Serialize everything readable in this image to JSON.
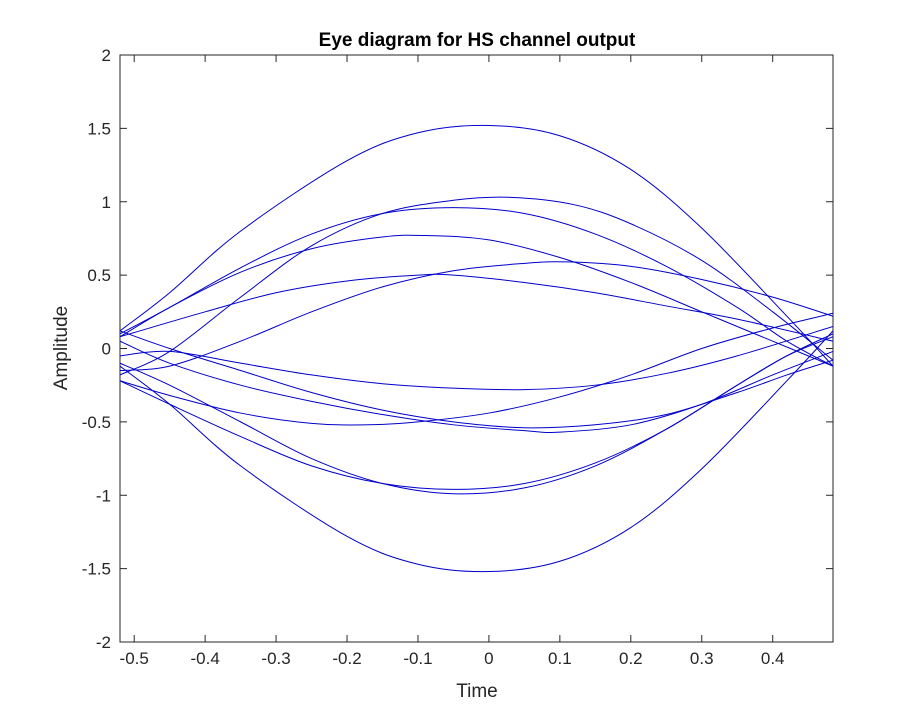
{
  "chart_data": {
    "type": "line",
    "title": "Eye diagram for HS channel output",
    "xlabel": "Time",
    "ylabel": "Amplitude",
    "xlim": [
      -0.52,
      0.485
    ],
    "ylim": [
      -2,
      2
    ],
    "xticks": [
      -0.5,
      -0.4,
      -0.3,
      -0.2,
      -0.1,
      0,
      0.1,
      0.2,
      0.3,
      0.4
    ],
    "xtick_labels": [
      "-0.5",
      "-0.4",
      "-0.3",
      "-0.2",
      "-0.1",
      "0",
      "0.1",
      "0.2",
      "0.3",
      "0.4"
    ],
    "yticks": [
      -2,
      -1.5,
      -1,
      -0.5,
      0,
      0.5,
      1,
      1.5,
      2
    ],
    "ytick_labels": [
      "-2",
      "-1.5",
      "-1",
      "-0.5",
      "0",
      "0.5",
      "1",
      "1.5",
      "2"
    ],
    "grid": false,
    "line_color": "#0000cc",
    "series": [
      {
        "x": [
          -0.52,
          -0.45,
          -0.35,
          -0.2,
          -0.1,
          0,
          0.1,
          0.2,
          0.3,
          0.42,
          0.485
        ],
        "y": [
          0.12,
          0.38,
          0.8,
          1.28,
          1.47,
          1.52,
          1.45,
          1.22,
          0.82,
          0.22,
          -0.12
        ]
      },
      {
        "x": [
          -0.52,
          -0.45,
          -0.35,
          -0.2,
          -0.1,
          0,
          0.1,
          0.2,
          0.3,
          0.42,
          0.485
        ],
        "y": [
          -0.12,
          -0.38,
          -0.8,
          -1.28,
          -1.47,
          -1.52,
          -1.45,
          -1.22,
          -0.82,
          -0.22,
          0.12
        ]
      },
      {
        "x": [
          -0.52,
          -0.45,
          -0.35,
          -0.25,
          -0.15,
          -0.05,
          0.03,
          0.12,
          0.2,
          0.3,
          0.4,
          0.485
        ],
        "y": [
          -0.18,
          -0.02,
          0.35,
          0.7,
          0.92,
          1.01,
          1.03,
          0.98,
          0.85,
          0.6,
          0.25,
          -0.08
        ]
      },
      {
        "x": [
          -0.52,
          -0.45,
          -0.35,
          -0.25,
          -0.15,
          -0.05,
          0.05,
          0.15,
          0.25,
          0.35,
          0.42,
          0.485
        ],
        "y": [
          0.1,
          0.28,
          0.55,
          0.78,
          0.92,
          0.96,
          0.92,
          0.78,
          0.56,
          0.28,
          0.05,
          -0.12
        ]
      },
      {
        "x": [
          -0.52,
          -0.45,
          -0.35,
          -0.25,
          -0.15,
          -0.09,
          0,
          0.1,
          0.2,
          0.3,
          0.4,
          0.485
        ],
        "y": [
          0.08,
          0.28,
          0.52,
          0.68,
          0.76,
          0.77,
          0.74,
          0.62,
          0.45,
          0.25,
          0.05,
          -0.12
        ]
      },
      {
        "x": [
          -0.52,
          -0.4,
          -0.3,
          -0.2,
          -0.1,
          -0.05,
          0.05,
          0.15,
          0.25,
          0.35,
          0.485
        ],
        "y": [
          0.08,
          0.25,
          0.38,
          0.46,
          0.5,
          0.5,
          0.45,
          0.38,
          0.29,
          0.2,
          0.05
        ]
      },
      {
        "x": [
          -0.52,
          -0.45,
          -0.35,
          -0.25,
          -0.15,
          -0.05,
          0.05,
          0.11,
          0.2,
          0.3,
          0.4,
          0.485
        ],
        "y": [
          -0.15,
          -0.12,
          0.05,
          0.25,
          0.42,
          0.53,
          0.58,
          0.59,
          0.56,
          0.47,
          0.35,
          0.22
        ]
      },
      {
        "x": [
          -0.52,
          -0.45,
          -0.35,
          -0.25,
          -0.15,
          -0.05,
          0.05,
          0.15,
          0.25,
          0.35,
          0.485
        ],
        "y": [
          -0.05,
          -0.02,
          -0.1,
          -0.18,
          -0.24,
          -0.27,
          -0.28,
          -0.25,
          -0.17,
          -0.05,
          0.15
        ]
      },
      {
        "x": [
          -0.52,
          -0.45,
          -0.35,
          -0.25,
          -0.17,
          -0.1,
          0,
          0.1,
          0.2,
          0.3,
          0.4,
          0.485
        ],
        "y": [
          -0.22,
          -0.32,
          -0.44,
          -0.51,
          -0.52,
          -0.5,
          -0.44,
          -0.33,
          -0.18,
          0.0,
          0.14,
          0.24
        ]
      },
      {
        "x": [
          -0.52,
          -0.45,
          -0.35,
          -0.25,
          -0.15,
          -0.05,
          0.05,
          0.1,
          0.2,
          0.3,
          0.4,
          0.485
        ],
        "y": [
          0.05,
          -0.1,
          -0.25,
          -0.36,
          -0.45,
          -0.52,
          -0.56,
          -0.57,
          -0.52,
          -0.38,
          -0.18,
          -0.02
        ]
      },
      {
        "x": [
          -0.52,
          -0.45,
          -0.35,
          -0.25,
          -0.15,
          -0.05,
          0.05,
          0.15,
          0.25,
          0.35,
          0.42,
          0.485
        ],
        "y": [
          0.12,
          0.0,
          -0.15,
          -0.3,
          -0.42,
          -0.5,
          -0.54,
          -0.52,
          -0.45,
          -0.3,
          -0.18,
          -0.08
        ]
      },
      {
        "x": [
          -0.52,
          -0.45,
          -0.35,
          -0.25,
          -0.15,
          -0.05,
          0.05,
          0.15,
          0.25,
          0.35,
          0.42,
          0.485
        ],
        "y": [
          -0.1,
          -0.25,
          -0.5,
          -0.75,
          -0.92,
          -0.99,
          -0.95,
          -0.8,
          -0.55,
          -0.25,
          -0.05,
          0.1
        ]
      },
      {
        "x": [
          -0.52,
          -0.45,
          -0.35,
          -0.25,
          -0.15,
          -0.05,
          0.05,
          0.15,
          0.25,
          0.35,
          0.42,
          0.485
        ],
        "y": [
          -0.22,
          -0.38,
          -0.6,
          -0.8,
          -0.92,
          -0.96,
          -0.92,
          -0.78,
          -0.55,
          -0.25,
          -0.05,
          0.08
        ]
      }
    ]
  }
}
